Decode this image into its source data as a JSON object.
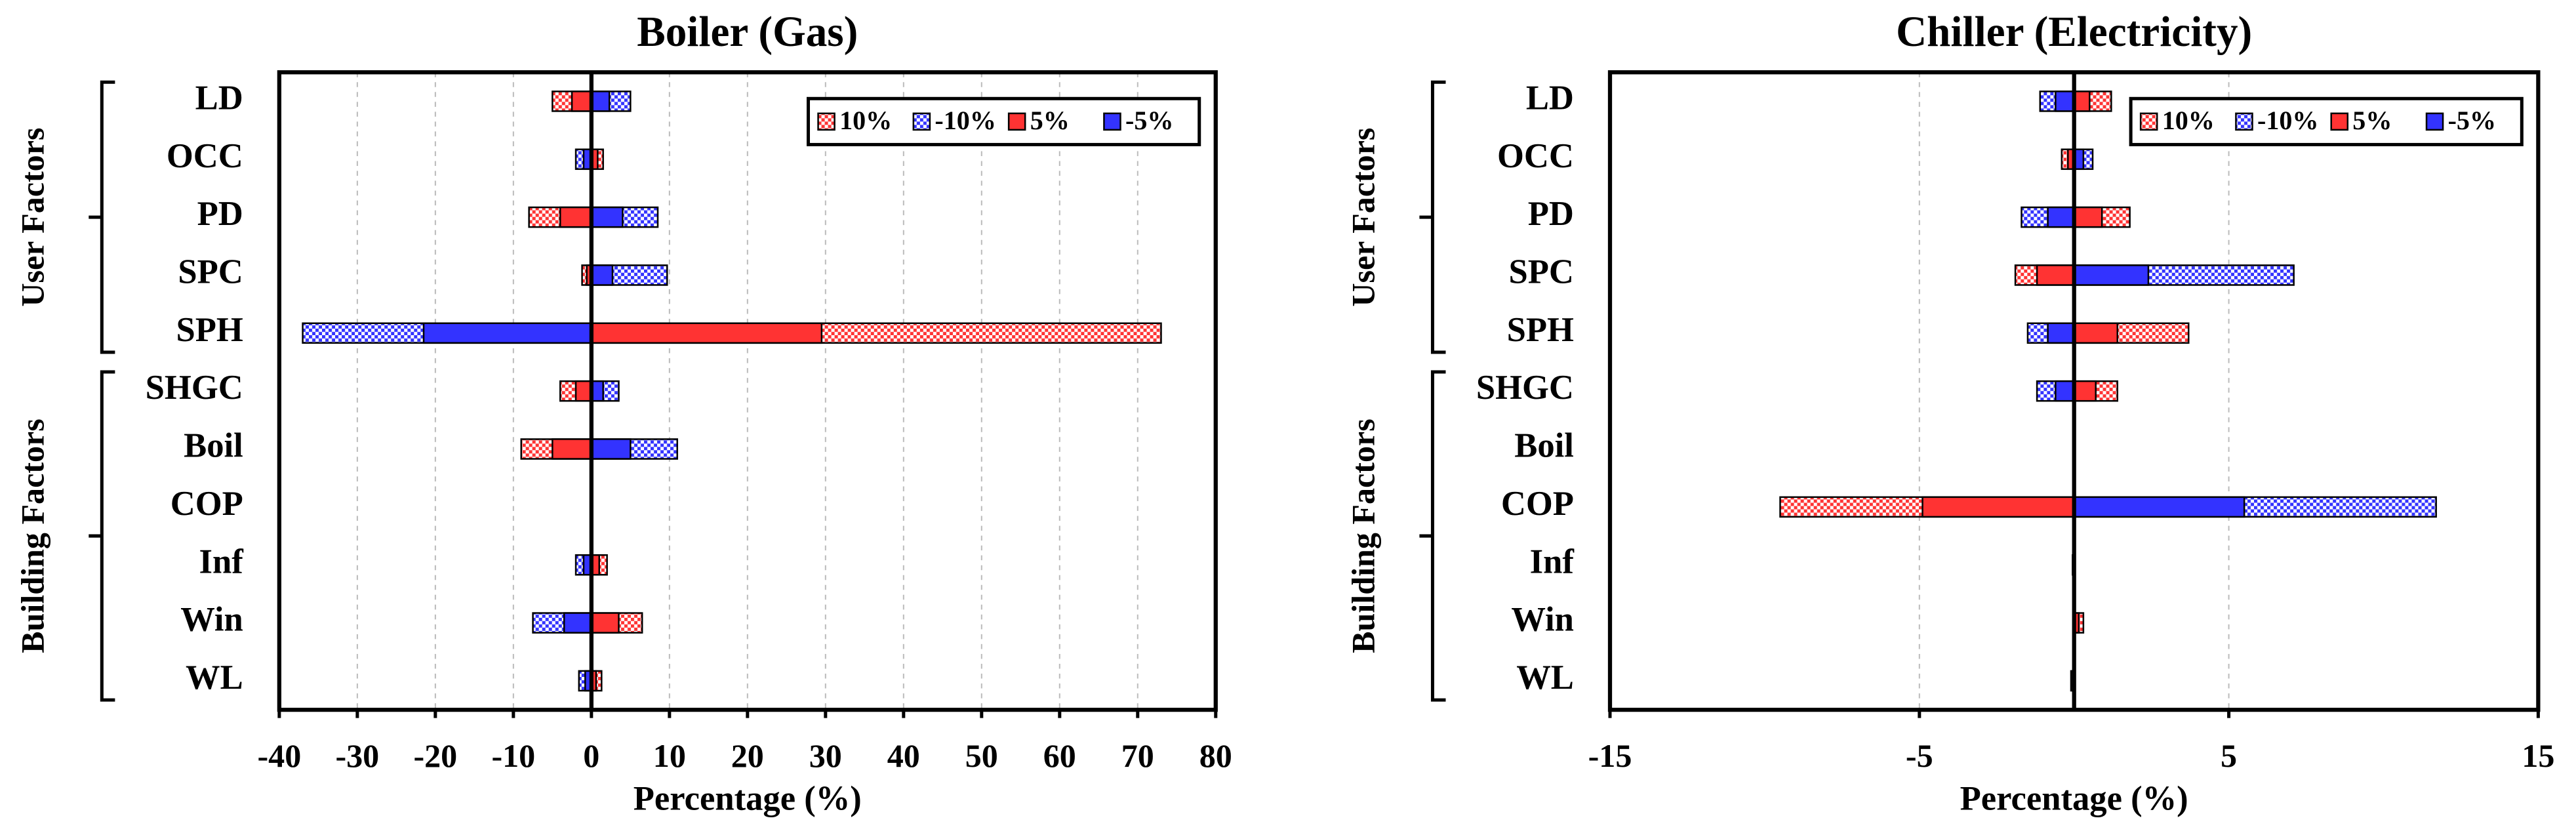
{
  "chart_data": [
    {
      "type": "tornado",
      "title": "Boiler (Gas)",
      "x_label": "Percentage (%)",
      "categories": [
        "LD",
        "OCC",
        "PD",
        "SPC",
        "SPH",
        "SHGC",
        "Boil",
        "COP",
        "Inf",
        "Win",
        "WL"
      ],
      "group_labels": [
        "User Factors",
        "Building Factors"
      ],
      "series": [
        {
          "name": "10%",
          "color": "#ff3333",
          "pattern": "checker",
          "values": [
            -5,
            1.5,
            -8,
            -1.2,
            73,
            -4,
            -9,
            0,
            2,
            6.5,
            1.3
          ]
        },
        {
          "name": "-10%",
          "color": "#3333ff",
          "pattern": "checker",
          "values": [
            5,
            -2,
            8.5,
            9.7,
            -37,
            3.5,
            11,
            0,
            -2,
            -7.5,
            -1.6
          ]
        },
        {
          "name": "5%",
          "color": "#ff3333",
          "pattern": "solid",
          "values": [
            -2.5,
            0.8,
            -4,
            -0.6,
            29.5,
            -2,
            -5,
            0,
            1,
            3.5,
            0.6
          ]
        },
        {
          "name": "-5%",
          "color": "#3333ff",
          "pattern": "solid",
          "values": [
            2.3,
            -1,
            4,
            2.7,
            -21.5,
            1.5,
            5,
            0,
            -1,
            -3.5,
            -0.8
          ]
        }
      ],
      "xlim": [
        -40,
        80
      ],
      "xticks": [
        -40,
        -30,
        -20,
        -10,
        0,
        10,
        20,
        30,
        40,
        50,
        60,
        70,
        80
      ],
      "grid": true,
      "legend": "upper right"
    },
    {
      "type": "tornado",
      "title": "Chiller (Electricity)",
      "x_label": "Percentage (%)",
      "categories": [
        "LD",
        "OCC",
        "PD",
        "SPC",
        "SPH",
        "SHGC",
        "Boil",
        "COP",
        "Inf",
        "Win",
        "WL"
      ],
      "group_labels": [
        "User Factors",
        "Building Factors"
      ],
      "series": [
        {
          "name": "10%",
          "color": "#ff3333",
          "pattern": "checker",
          "values": [
            1.2,
            -0.4,
            1.8,
            -1.9,
            3.7,
            1.4,
            0,
            -9.5,
            0,
            0.3,
            0
          ]
        },
        {
          "name": "-10%",
          "color": "#3333ff",
          "pattern": "checker",
          "values": [
            -1.1,
            0.6,
            -1.7,
            7.1,
            -1.5,
            -1.2,
            0,
            11.7,
            -0.05,
            0,
            -0.1
          ]
        },
        {
          "name": "5%",
          "color": "#ff3333",
          "pattern": "solid",
          "values": [
            0.5,
            -0.2,
            0.9,
            -1.2,
            1.4,
            0.7,
            0,
            -4.9,
            0,
            0.15,
            0
          ]
        },
        {
          "name": "-5%",
          "color": "#3333ff",
          "pattern": "solid",
          "values": [
            -0.6,
            0.3,
            -0.85,
            2.4,
            -0.85,
            -0.6,
            0,
            5.5,
            -0.03,
            0,
            -0.05
          ]
        }
      ],
      "xlim": [
        -15,
        15
      ],
      "xticks": [
        -15,
        -5,
        5,
        15
      ],
      "grid": true,
      "legend": "upper right"
    }
  ]
}
